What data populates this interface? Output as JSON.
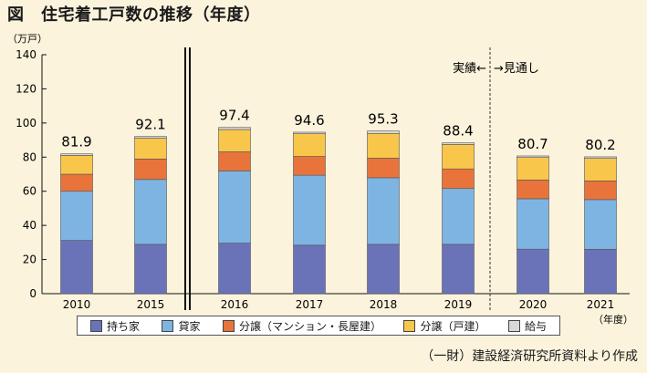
{
  "title": "図　住宅着工戸数の推移（年度）",
  "source": "（一財）建設経済研究所資料より作成",
  "chart_data": {
    "type": "bar",
    "stacked": true,
    "title": "図　住宅着工戸数の推移（年度）",
    "ylabel": "（万戸）",
    "xlabel": "（年度）",
    "ylim": [
      0,
      140
    ],
    "yticks": [
      0,
      20,
      40,
      60,
      80,
      100,
      120,
      140
    ],
    "grid": false,
    "legend_position": "bottom",
    "categories": [
      "2010",
      "2015",
      "2016",
      "2017",
      "2018",
      "2019",
      "2020",
      "2021"
    ],
    "series": [
      {
        "name": "持ち家",
        "color": "#6b73b8",
        "values": [
          31.2,
          28.9,
          29.6,
          28.4,
          28.9,
          28.9,
          26.1,
          26.0
        ]
      },
      {
        "name": "貸家",
        "color": "#7eb4e2",
        "values": [
          28.8,
          38.0,
          42.3,
          41.0,
          39.0,
          32.7,
          29.5,
          29.1
        ]
      },
      {
        "name": "分譲（マンション・長屋建）",
        "color": "#e8743b",
        "values": [
          10.0,
          12.0,
          11.2,
          11.0,
          11.5,
          11.5,
          11.0,
          11.0
        ]
      },
      {
        "name": "分譲（戸建）",
        "color": "#f9c64c",
        "values": [
          11.0,
          12.2,
          13.1,
          13.3,
          14.5,
          14.3,
          13.2,
          13.2
        ]
      },
      {
        "name": "給与",
        "color": "#d9d9d9",
        "values": [
          0.9,
          1.0,
          1.2,
          0.9,
          1.4,
          1.0,
          0.9,
          0.9
        ]
      }
    ],
    "totals": [
      "81.9",
      "92.1",
      "97.4",
      "94.6",
      "95.3",
      "88.4",
      "80.7",
      "80.2"
    ],
    "annotation": {
      "actual_label": "実績",
      "arrow_left": "←",
      "arrow_right": "→",
      "forecast_label": "見通し"
    }
  }
}
